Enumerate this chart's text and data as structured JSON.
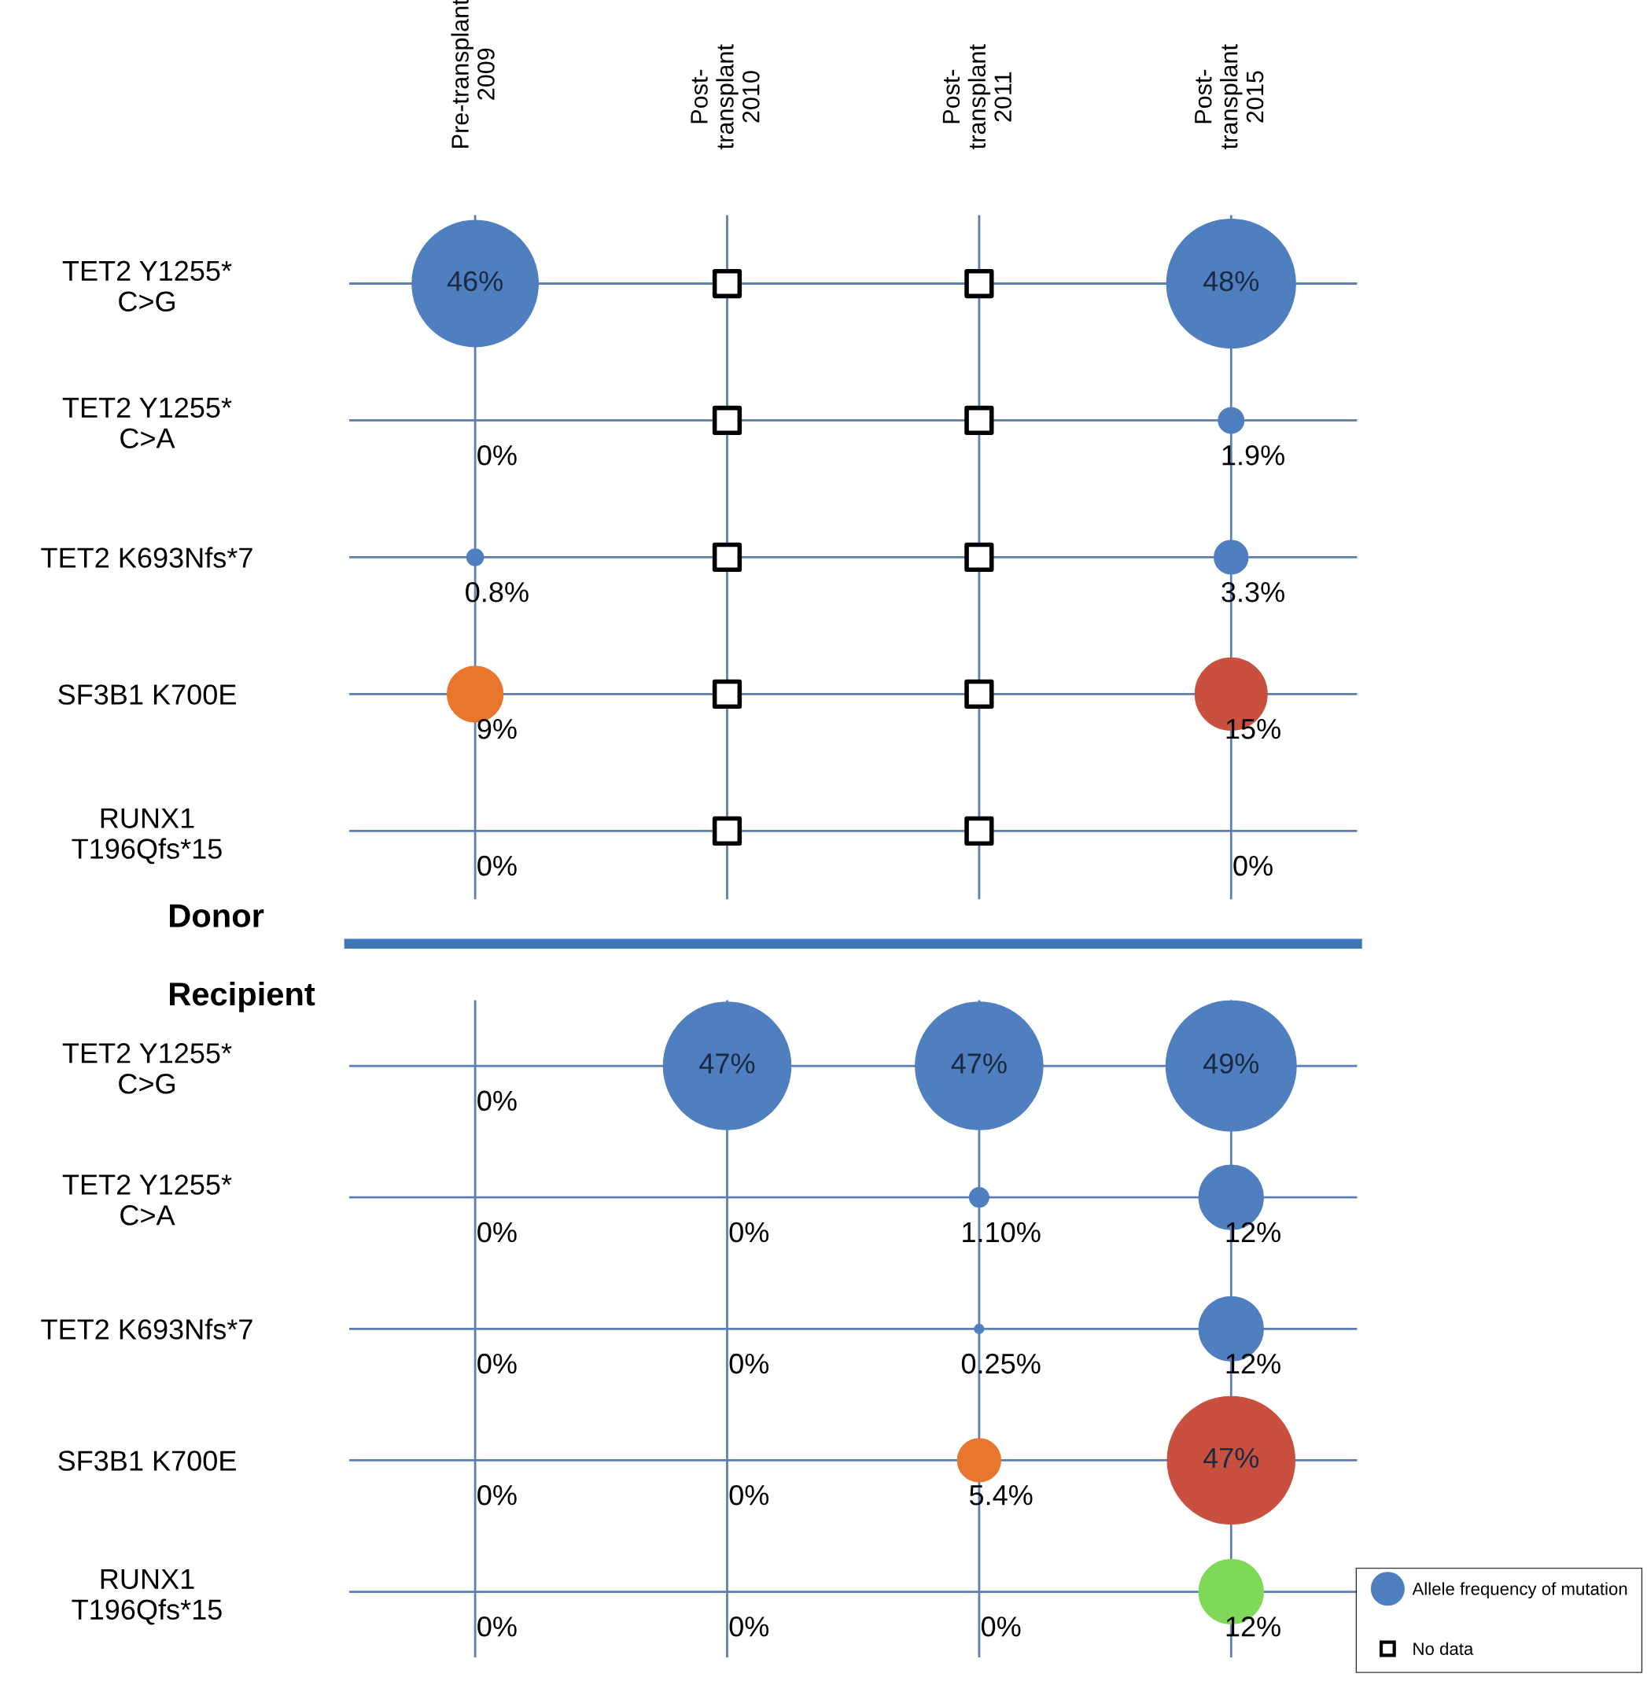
{
  "chart_data": [
    {
      "type": "heatmap",
      "title": "Donor",
      "categories": [
        "Pre-transplant\n2009",
        "Post-\ntransplant\n2010",
        "Post-\ntransplant\n2011",
        "Post-\ntransplant\n2015"
      ],
      "y_categories": [
        "TET2 Y1255*\nC>G",
        "TET2 Y1255*\nC>A",
        "TET2 K693Nfs*7",
        "SF3B1 K700E",
        "RUNX1\nT196Qfs*15"
      ],
      "cells": [
        [
          46,
          null,
          null,
          48
        ],
        [
          0,
          null,
          null,
          1.9
        ],
        [
          0.8,
          null,
          null,
          3.3
        ],
        [
          9,
          null,
          null,
          15
        ],
        [
          0,
          null,
          null,
          0
        ]
      ],
      "cell_labels": [
        [
          "46%",
          null,
          null,
          "48%"
        ],
        [
          "0%",
          null,
          null,
          "1.9%"
        ],
        [
          "0.8%",
          null,
          null,
          "3.3%"
        ],
        [
          "9%",
          null,
          null,
          "15%"
        ],
        [
          "0%",
          null,
          null,
          "0%"
        ]
      ],
      "colors": [
        [
          "#4f7fbf",
          null,
          null,
          "#4f7fbf"
        ],
        [
          "#4f7fbf",
          null,
          null,
          "#4f7fbf"
        ],
        [
          "#4f7fbf",
          null,
          null,
          "#4f7fbf"
        ],
        [
          "#e8762c",
          null,
          null,
          "#c9503f"
        ],
        [
          "#4f7fbf",
          null,
          null,
          "#4f7fbf"
        ]
      ],
      "grid": true
    },
    {
      "type": "heatmap",
      "title": "Recipient",
      "categories": [
        null,
        null,
        null,
        null
      ],
      "y_categories": [
        "TET2 Y1255*\nC>G",
        "TET2 Y1255*\nC>A",
        "TET2 K693Nfs*7",
        "SF3B1 K700E",
        "RUNX1\nT196Qfs*15"
      ],
      "cells": [
        [
          0,
          47,
          47,
          49
        ],
        [
          0,
          0,
          1.1,
          12
        ],
        [
          0,
          0,
          0.25,
          12
        ],
        [
          0,
          0,
          5.4,
          47
        ],
        [
          0,
          0,
          0,
          12
        ]
      ],
      "cell_labels": [
        [
          "0%",
          "47%",
          "47%",
          "49%"
        ],
        [
          "0%",
          "0%",
          "1.10%",
          "12%"
        ],
        [
          "0%",
          "0%",
          "0.25%",
          "12%"
        ],
        [
          "0%",
          "0%",
          "5.4%",
          "47%"
        ],
        [
          "0%",
          "0%",
          "0%",
          "12%"
        ]
      ],
      "colors": [
        [
          "#4f7fbf",
          "#4f7fbf",
          "#4f7fbf",
          "#4f7fbf"
        ],
        [
          "#4f7fbf",
          "#4f7fbf",
          "#4f7fbf",
          "#4f7fbf"
        ],
        [
          "#4f7fbf",
          "#4f7fbf",
          "#4f7fbf",
          "#4f7fbf"
        ],
        [
          "#e8762c",
          "#e8762c",
          "#e8762c",
          "#c9503f"
        ],
        [
          "#4f7fbf",
          "#4f7fbf",
          "#4f7fbf",
          "#7ed957"
        ]
      ],
      "grid": true,
      "annotations": [
        "Allele frequency of mutation",
        "No data"
      ]
    }
  ]
}
